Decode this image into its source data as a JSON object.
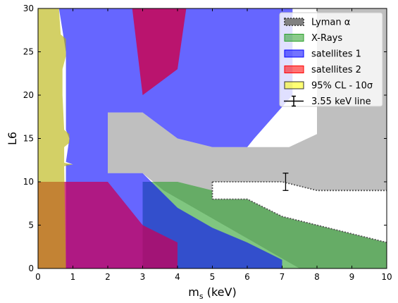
{
  "chart_data": {
    "type": "area",
    "xlabel": "m",
    "xlabel_sub": "s",
    "xlabel_unit": "(keV)",
    "ylabel": "L6",
    "xlim": [
      0,
      10
    ],
    "ylim": [
      0,
      30
    ],
    "xticks": [
      "0",
      "1",
      "2",
      "3",
      "4",
      "5",
      "6",
      "7",
      "8",
      "9",
      "10"
    ],
    "yticks": [
      "0",
      "5",
      "10",
      "15",
      "20",
      "25",
      "30"
    ],
    "legend_placement": "upper-right",
    "legend": [
      {
        "key": "lyman",
        "label": "Lyman α",
        "color": "#808080"
      },
      {
        "key": "xrays",
        "label": "X-Rays",
        "color": "#2ca02c"
      },
      {
        "key": "sat1",
        "label": "satellites 1",
        "color": "#0000ff"
      },
      {
        "key": "sat2",
        "label": "satellites 2",
        "color": "#ff0000"
      },
      {
        "key": "cl95",
        "label": "95% CL - 10σ",
        "color": "#ffff00"
      },
      {
        "key": "line355",
        "label": "3.55 keV line",
        "color": "#000000"
      }
    ],
    "regions": [
      {
        "key": "lyman",
        "name": "lyman-alpha-region",
        "color": "#808080",
        "opacity": 0.5,
        "points": [
          [
            2,
            11
          ],
          [
            3,
            11
          ],
          [
            3.6,
            9
          ],
          [
            7.5,
            0
          ],
          [
            10,
            0
          ],
          [
            10,
            30
          ],
          [
            8,
            30
          ],
          [
            8,
            15.5
          ],
          [
            7.2,
            14
          ],
          [
            6,
            14
          ],
          [
            5,
            14
          ],
          [
            4,
            15
          ],
          [
            3,
            18
          ],
          [
            2,
            18
          ]
        ]
      },
      {
        "key": "xrays",
        "name": "x-rays-region",
        "color": "#2ca02c",
        "opacity": 0.6,
        "points": [
          [
            3,
            10
          ],
          [
            4,
            10
          ],
          [
            5,
            9
          ],
          [
            6,
            9
          ],
          [
            7,
            8
          ],
          [
            10,
            8
          ],
          [
            10,
            0
          ],
          [
            3,
            0
          ]
        ]
      },
      {
        "key": "sat1",
        "name": "satellites-1-region",
        "color": "#0000ff",
        "opacity": 0.6,
        "points": [
          [
            0.5,
            30
          ],
          [
            7.3,
            30
          ],
          [
            7.3,
            20
          ],
          [
            6.2,
            15
          ],
          [
            6,
            14
          ],
          [
            5,
            14
          ],
          [
            4,
            15
          ],
          [
            3,
            18
          ],
          [
            2,
            18
          ],
          [
            2,
            11
          ],
          [
            3,
            11
          ],
          [
            4,
            7
          ],
          [
            5,
            4.7
          ],
          [
            6,
            3
          ],
          [
            7,
            1
          ],
          [
            7,
            0
          ],
          [
            0.8,
            0
          ],
          [
            0.8,
            12
          ],
          [
            1,
            12
          ],
          [
            0.8,
            12.3
          ],
          [
            0.9,
            15
          ],
          [
            0.8,
            16
          ],
          [
            0.8,
            25
          ],
          [
            0.6,
            30
          ]
        ]
      },
      {
        "key": "sat2",
        "name": "satellites-2-region",
        "color": "#d0004a",
        "opacity": 0.8,
        "points": [
          [
            2.7,
            30
          ],
          [
            4.25,
            30
          ],
          [
            4,
            23
          ],
          [
            3.5,
            21.5
          ],
          [
            3,
            20
          ]
        ]
      },
      {
        "key": "sat2",
        "name": "satellites-2-lower-region",
        "color": "#c8005a",
        "opacity": 0.75,
        "points": [
          [
            0,
            10
          ],
          [
            2,
            10
          ],
          [
            3,
            5
          ],
          [
            4,
            3
          ],
          [
            4,
            0
          ],
          [
            0,
            0
          ]
        ]
      },
      {
        "key": "cl95",
        "name": "cl95-region",
        "color": "#b5b000",
        "opacity": 0.6,
        "points": [
          [
            0,
            30
          ],
          [
            0.6,
            30
          ],
          [
            0.65,
            27
          ],
          [
            0.8,
            26.5
          ],
          [
            0.8,
            24.5
          ],
          [
            0.7,
            23
          ],
          [
            0.7,
            20
          ],
          [
            0.75,
            16
          ],
          [
            0.9,
            15.5
          ],
          [
            0.9,
            14.5
          ],
          [
            0.75,
            14
          ],
          [
            0.75,
            12.2
          ],
          [
            1,
            12
          ],
          [
            0.75,
            11.8
          ],
          [
            0.8,
            0
          ],
          [
            0,
            0
          ]
        ]
      }
    ],
    "white_band": [
      [
        5,
        10
      ],
      [
        7,
        10
      ],
      [
        8,
        9
      ],
      [
        10,
        9
      ],
      [
        10,
        3
      ],
      [
        9,
        4
      ],
      [
        8,
        5
      ],
      [
        7,
        6
      ],
      [
        6,
        8
      ],
      [
        5,
        8
      ]
    ],
    "lyman_boundary": [
      [
        5,
        10
      ],
      [
        7,
        10
      ],
      [
        8,
        9
      ],
      [
        10,
        9
      ]
    ],
    "lyman_boundary_lower": [
      [
        5,
        8
      ],
      [
        6,
        8
      ],
      [
        7,
        6
      ],
      [
        8,
        5
      ],
      [
        9,
        4
      ],
      [
        10,
        3
      ]
    ],
    "line355": {
      "x": 7.1,
      "y": 10,
      "err_low": 9,
      "err_high": 11
    }
  }
}
